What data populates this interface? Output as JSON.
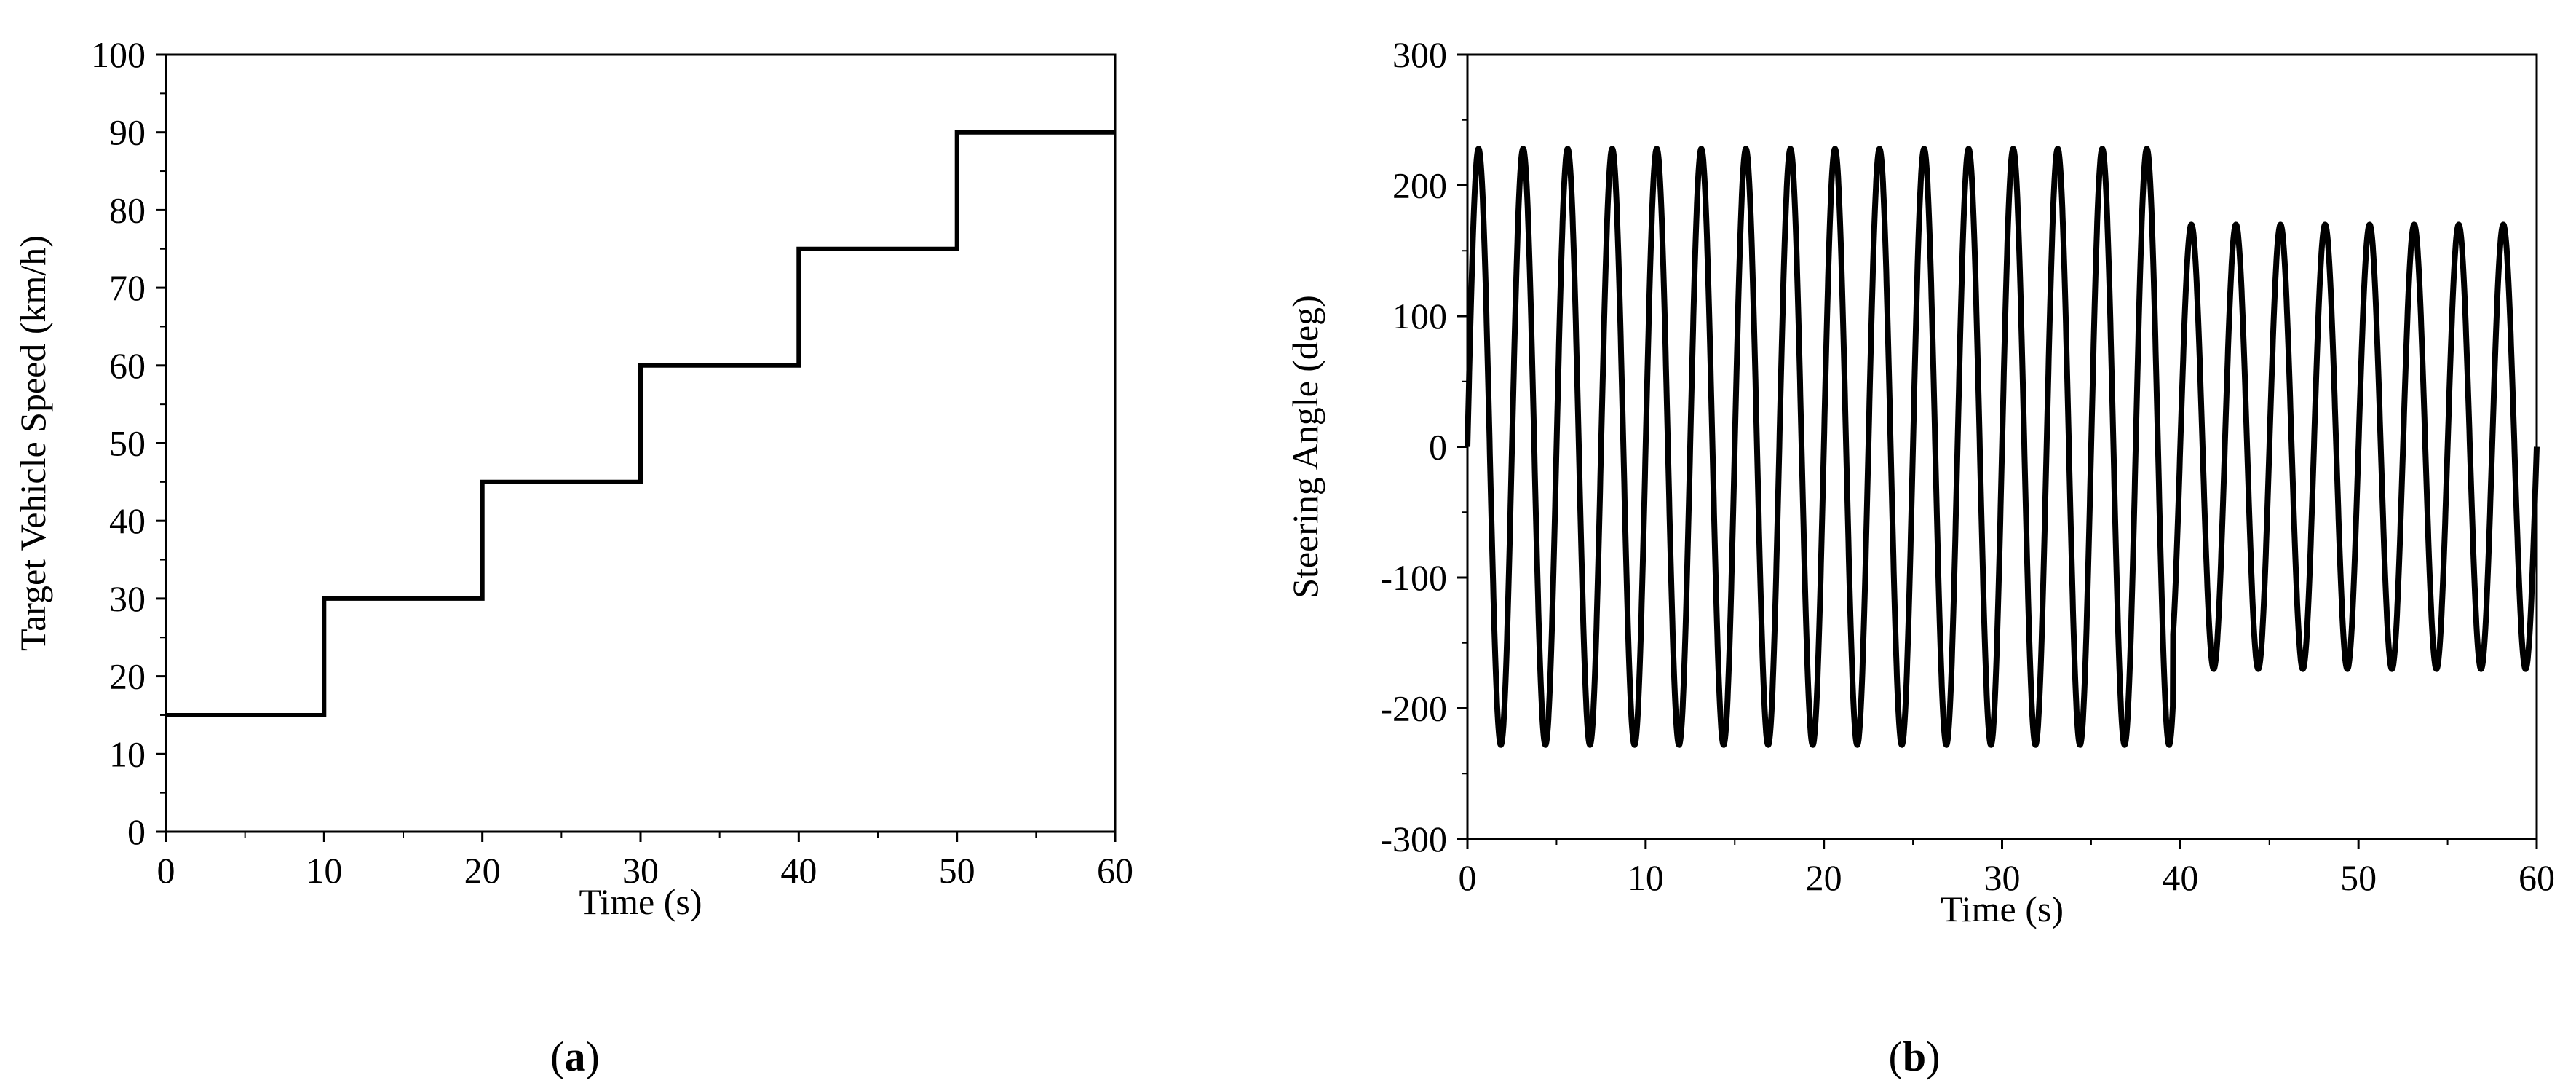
{
  "chart_data": [
    {
      "id": "a",
      "panel_label": {
        "open": "(",
        "letter": "a",
        "close": ")"
      },
      "type": "line",
      "xlabel": "Time (s)",
      "ylabel": "Target Vehicle Speed (km/h)",
      "xlim": [
        0,
        60
      ],
      "ylim": [
        0,
        100
      ],
      "xticks": [
        0,
        10,
        20,
        30,
        40,
        50,
        60
      ],
      "yticks": [
        0,
        10,
        20,
        30,
        40,
        50,
        60,
        70,
        80,
        90,
        100
      ],
      "grid": false,
      "series": [
        {
          "x": [
            0,
            10,
            10,
            20,
            20,
            30,
            30,
            40,
            40,
            50,
            50,
            60
          ],
          "values": [
            15,
            15,
            30,
            30,
            45,
            45,
            60,
            60,
            75,
            75,
            90,
            90
          ]
        }
      ]
    },
    {
      "id": "b",
      "panel_label": {
        "open": "(",
        "letter": "b",
        "close": ")"
      },
      "type": "line",
      "xlabel": "Time (s)",
      "ylabel": "Steering Angle (deg)",
      "xlim": [
        0,
        60
      ],
      "ylim": [
        -300,
        300
      ],
      "xticks": [
        0,
        10,
        20,
        30,
        40,
        50,
        60
      ],
      "yticks": [
        -300,
        -200,
        -100,
        0,
        100,
        200,
        300
      ],
      "grid": false,
      "series": [
        {
          "description_type": "sinusoid",
          "segments": [
            {
              "t_start": 0,
              "t_end": 39.6,
              "amplitude": 228,
              "period_s": 2.5
            },
            {
              "t_start": 39.6,
              "t_end": 60,
              "amplitude": 170,
              "period_s": 2.5
            }
          ]
        }
      ]
    }
  ]
}
